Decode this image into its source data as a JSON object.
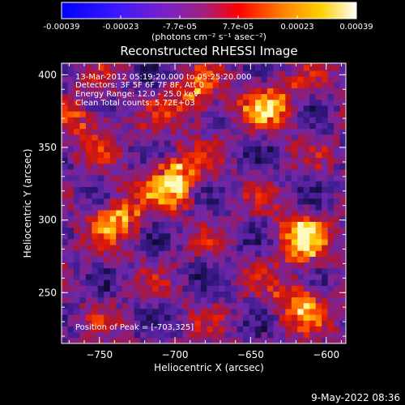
{
  "colorbar": {
    "tick_labels": [
      "-0.00039",
      "-0.00023",
      "-7.7e-05",
      "7.7e-05",
      "0.00023",
      "0.00039"
    ],
    "units_label": "(photons cm⁻² s⁻¹ asec⁻²)",
    "colors": [
      "#0000ff",
      "#3a18ff",
      "#7a20c8",
      "#a02080",
      "#ff0000",
      "#ff8000",
      "#ffd000",
      "#ffffff"
    ]
  },
  "chart_data": {
    "type": "heatmap",
    "title": "Reconstructed RHESSI Image",
    "xlabel": "Heliocentric X (arcsec)",
    "ylabel": "Heliocentric Y (arcsec)",
    "xlim": [
      -775,
      -587
    ],
    "ylim": [
      215,
      408
    ],
    "x_ticks": [
      -750,
      -700,
      -650,
      -600
    ],
    "y_ticks": [
      250,
      300,
      350,
      400
    ],
    "x_tick_labels": [
      "−750",
      "−700",
      "−650",
      "−600"
    ],
    "y_tick_labels": [
      "250",
      "300",
      "350",
      "400"
    ],
    "annotations": [
      "13-Mar-2012 05:19:20.000 to 05:25:20.000",
      "Detectors: 3F 5F 6F 7F 8F, Att 0",
      "Energy Range: 12.0 - 25.0 keV",
      "Clean     Total counts: 5.72E+03"
    ],
    "peak_label": "Position of Peak = [-703,325]",
    "peak_position": [
      -703,
      325
    ],
    "value_range": [
      -0.00039,
      0.00039
    ],
    "hot_regions": [
      {
        "x": -703,
        "y": 325,
        "strength": 1.0
      },
      {
        "x": -618,
        "y": 285,
        "strength": 0.9
      },
      {
        "x": -640,
        "y": 380,
        "strength": 0.8
      },
      {
        "x": -740,
        "y": 300,
        "strength": 0.7
      },
      {
        "x": -690,
        "y": 380,
        "strength": 0.6
      },
      {
        "x": -620,
        "y": 240,
        "strength": 0.7
      },
      {
        "x": -760,
        "y": 365,
        "strength": 0.5
      }
    ]
  },
  "footer": {
    "date_stamp": "9-May-2022 08:36"
  }
}
